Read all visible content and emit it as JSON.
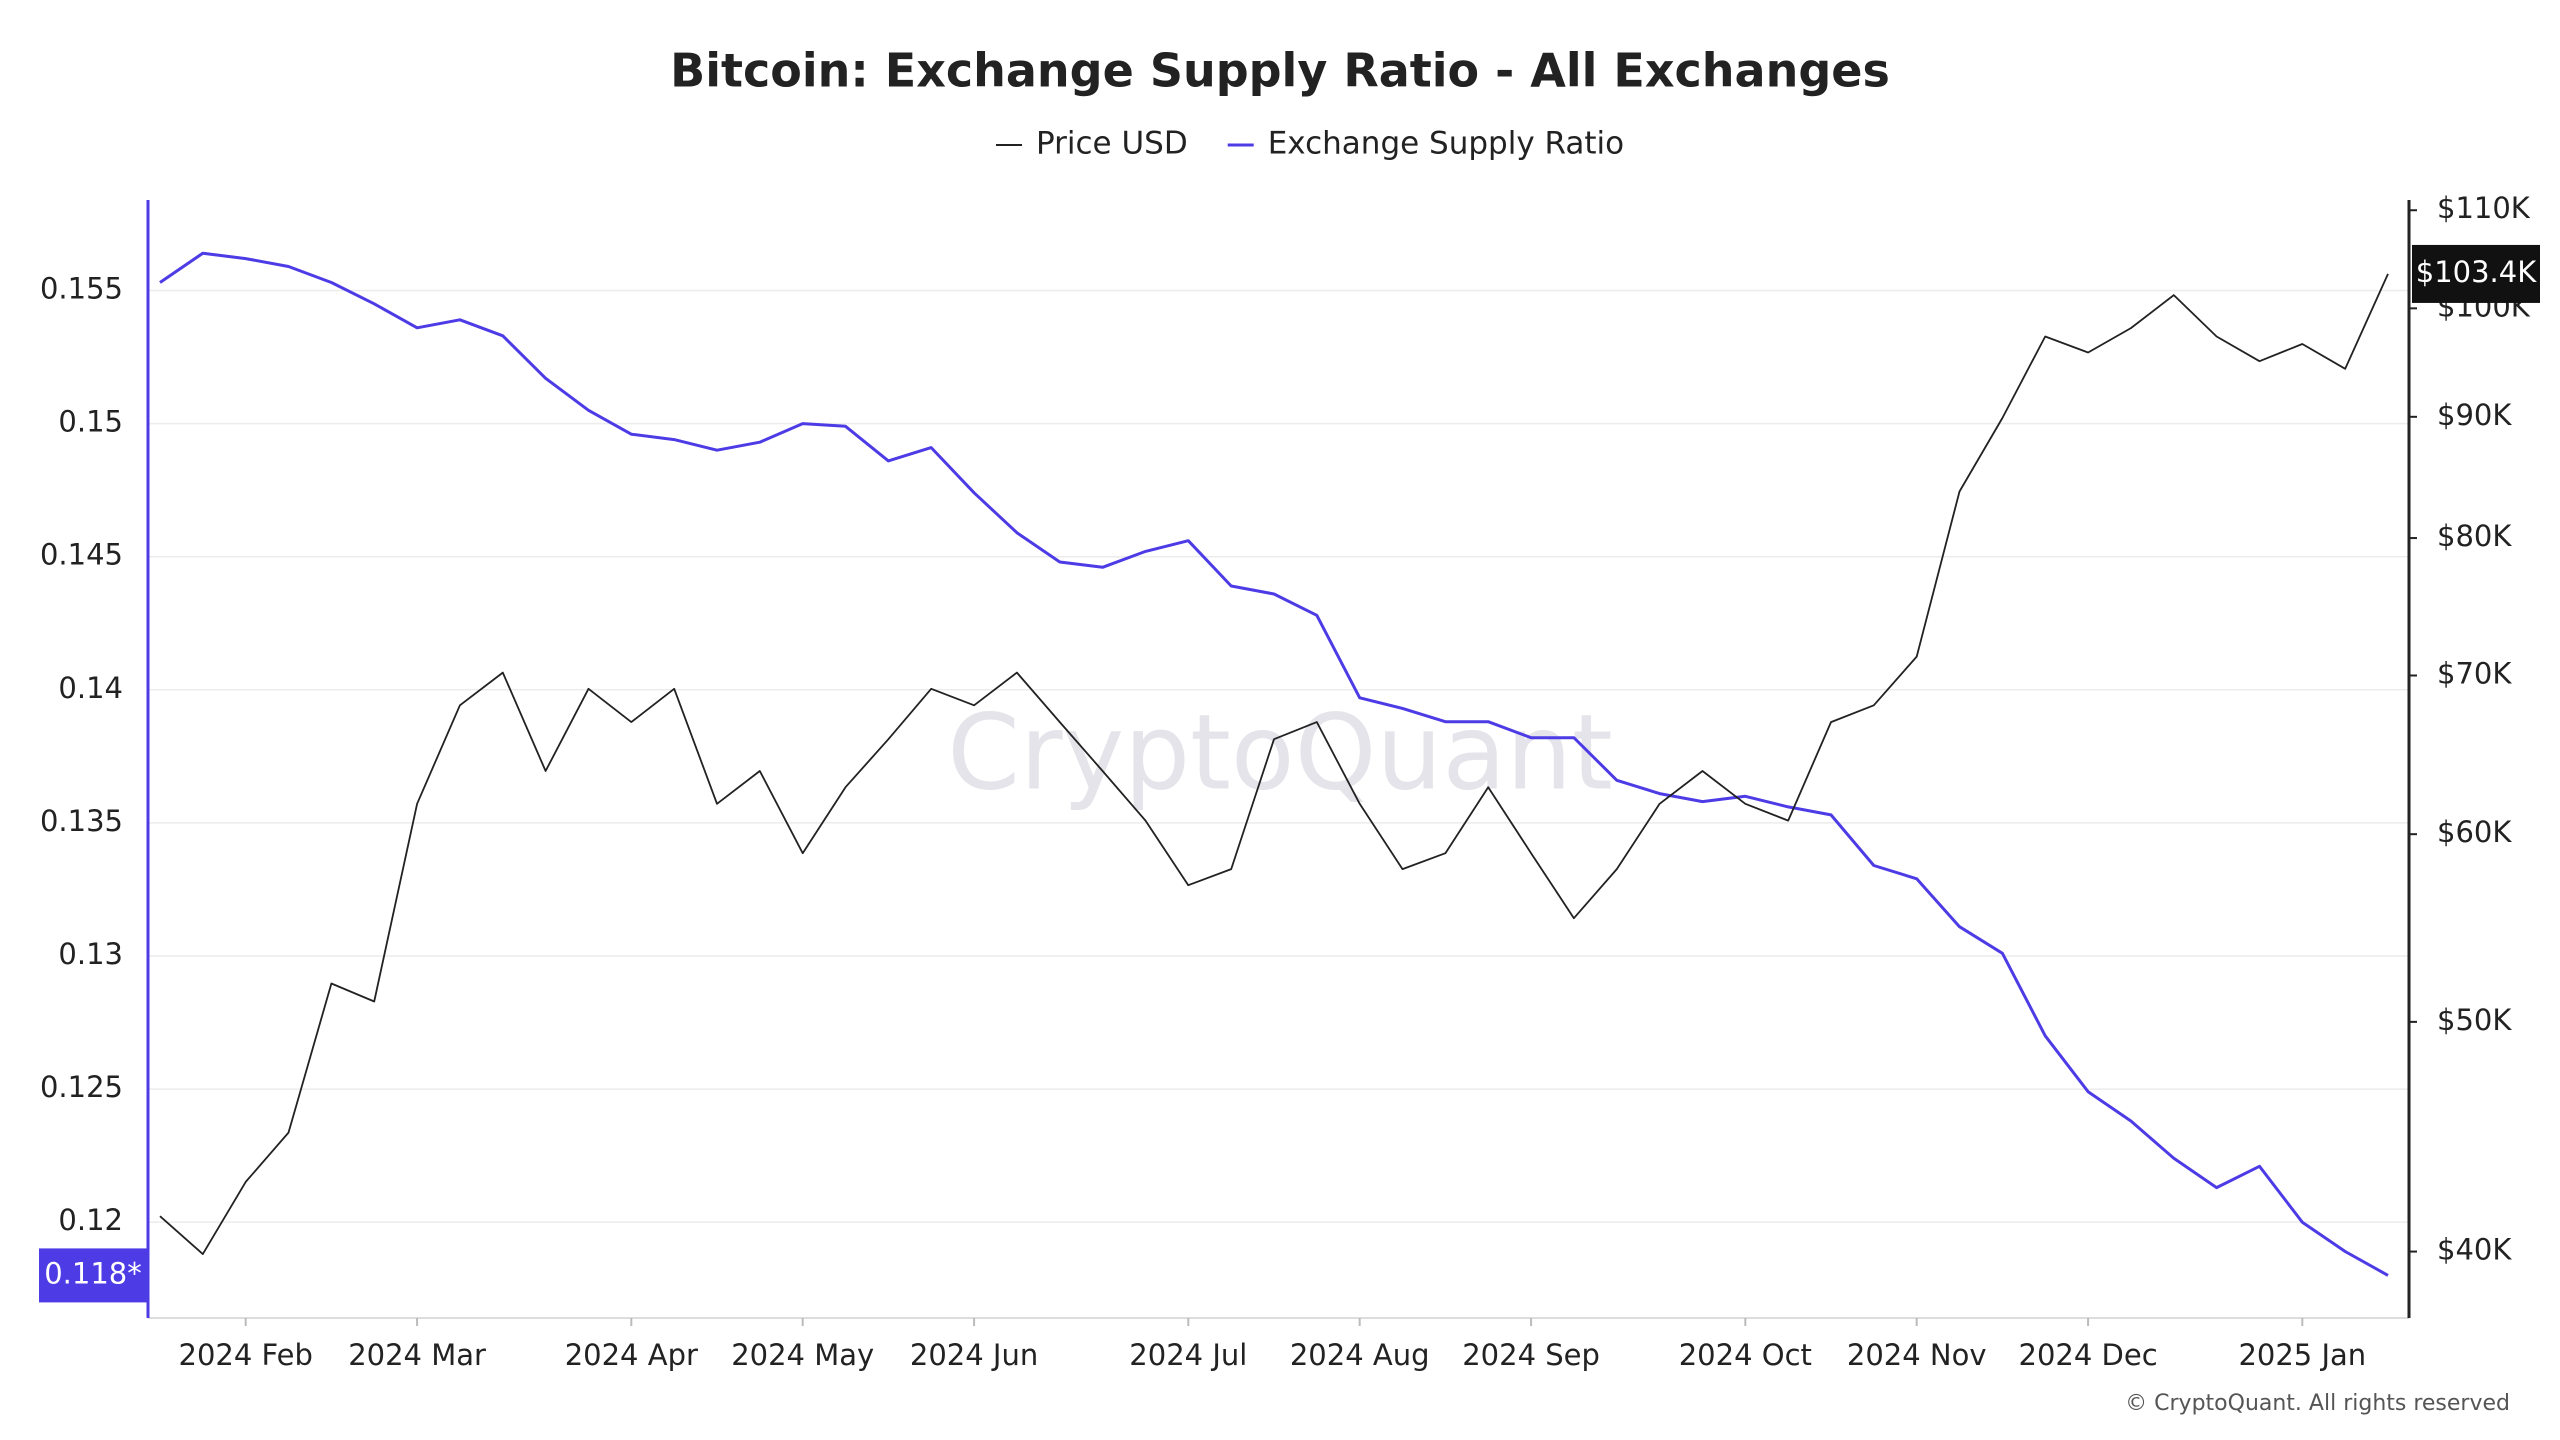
{
  "chart_data": {
    "type": "line",
    "title": "Bitcoin: Exchange Supply Ratio - All Exchanges",
    "watermark": "CryptoQuant",
    "footer": "© CryptoQuant. All rights reserved",
    "categories": [
      null,
      null,
      "2024 Feb",
      null,
      null,
      null,
      "2024 Mar",
      null,
      null,
      null,
      null,
      "2024 Apr",
      null,
      null,
      null,
      "2024 May",
      null,
      null,
      null,
      "2024 Jun",
      null,
      null,
      null,
      null,
      "2024 Jul",
      null,
      null,
      null,
      "2024 Aug",
      null,
      null,
      null,
      "2024 Sep",
      null,
      null,
      null,
      null,
      "2024 Oct",
      null,
      null,
      null,
      "2024 Nov",
      null,
      null,
      null,
      "2024 Dec",
      null,
      null,
      null,
      null,
      "2025 Jan",
      null,
      null
    ],
    "series": [
      {
        "name": "Price USD",
        "color": "#222222",
        "axis": "y2",
        "values": [
          41400,
          39900,
          42800,
          44900,
          51900,
          51000,
          61800,
          68000,
          70200,
          63800,
          69100,
          66900,
          69100,
          61800,
          63800,
          58900,
          62800,
          65800,
          69100,
          68000,
          70200,
          66900,
          63800,
          60800,
          57100,
          58000,
          65800,
          66900,
          61800,
          58000,
          58900,
          62800,
          58900,
          55300,
          58000,
          61800,
          63800,
          61800,
          60800,
          66900,
          68000,
          71300,
          83700,
          89900,
          97300,
          95800,
          98100,
          101300,
          97300,
          95000,
          96600,
          94300,
          103400
        ]
      },
      {
        "name": "Exchange Supply Ratio",
        "color": "#4d3be6",
        "axis": "y",
        "values": [
          0.1553,
          0.1564,
          0.1562,
          0.1559,
          0.1553,
          0.1545,
          0.1536,
          0.1539,
          0.1533,
          0.1517,
          0.1505,
          0.1496,
          0.1494,
          0.149,
          0.1493,
          0.15,
          0.1499,
          0.1486,
          0.1491,
          0.1474,
          0.1459,
          0.1448,
          0.1446,
          0.1452,
          0.1456,
          0.1439,
          0.1436,
          0.1428,
          0.1397,
          0.1393,
          0.1388,
          0.1388,
          0.1382,
          0.1382,
          0.1366,
          0.1361,
          0.1358,
          0.136,
          0.1356,
          0.1353,
          0.1334,
          0.1329,
          0.1311,
          0.1301,
          0.127,
          0.1249,
          0.1238,
          0.1224,
          0.1213,
          0.1221,
          0.12,
          0.1189,
          0.118
        ]
      }
    ],
    "ylim": [
      0.1164,
      0.1584
    ],
    "yticks": [
      0.12,
      0.125,
      0.13,
      0.135,
      0.14,
      0.145,
      0.15,
      0.155
    ],
    "y2lim": [
      37500,
      111100
    ],
    "y2scale": "log",
    "y2ticks": [
      {
        "value": 40000,
        "label": "$40K"
      },
      {
        "value": 50000,
        "label": "$50K"
      },
      {
        "value": 60000,
        "label": "$60K"
      },
      {
        "value": 70000,
        "label": "$70K"
      },
      {
        "value": 80000,
        "label": "$80K"
      },
      {
        "value": 90000,
        "label": "$90K"
      },
      {
        "value": 100000,
        "label": "$100K"
      },
      {
        "value": 110000,
        "label": "$110K"
      }
    ],
    "current_labels": [
      {
        "value": 0.118,
        "label": "0.118*",
        "axis": "y"
      },
      {
        "value": 103400,
        "label": "$103.4K",
        "axis": "y2"
      }
    ],
    "grid": true
  }
}
